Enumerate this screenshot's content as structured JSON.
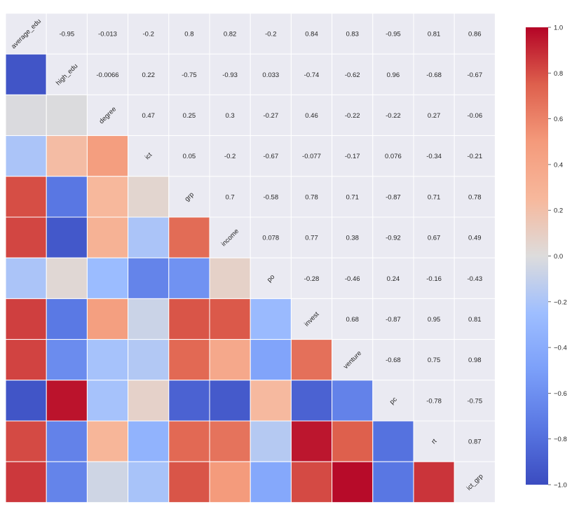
{
  "chart_data": {
    "type": "heatmap",
    "title": "",
    "xlabel": "",
    "ylabel": "",
    "variables": [
      "average_edu",
      "high_edu",
      "degree",
      "ict",
      "grp",
      "income",
      "po",
      "invest",
      "venture",
      "pc",
      "rt",
      "ict_grp"
    ],
    "upper_labels": [
      [
        "",
        "-0.95",
        "-0.013",
        "-0.2",
        "0.8",
        "0.82",
        "-0.2",
        "0.84",
        "0.83",
        "-0.95",
        "0.81",
        "0.86"
      ],
      [
        "",
        "",
        "-0.0066",
        "0.22",
        "-0.75",
        "-0.93",
        "0.033",
        "-0.74",
        "-0.62",
        "0.96",
        "-0.68",
        "-0.67"
      ],
      [
        "",
        "",
        "",
        "0.47",
        "0.25",
        "0.3",
        "-0.27",
        "0.46",
        "-0.22",
        "-0.22",
        "0.27",
        "-0.06"
      ],
      [
        "",
        "",
        "",
        "",
        "0.05",
        "-0.2",
        "-0.67",
        "-0.077",
        "-0.17",
        "0.076",
        "-0.34",
        "-0.21"
      ],
      [
        "",
        "",
        "",
        "",
        "",
        "0.7",
        "-0.58",
        "0.78",
        "0.71",
        "-0.87",
        "0.71",
        "0.78"
      ],
      [
        "",
        "",
        "",
        "",
        "",
        "",
        "0.078",
        "0.77",
        "0.38",
        "-0.92",
        "0.67",
        "0.49"
      ],
      [
        "",
        "",
        "",
        "",
        "",
        "",
        "",
        "-0.28",
        "-0.46",
        "0.24",
        "-0.16",
        "-0.43"
      ],
      [
        "",
        "",
        "",
        "",
        "",
        "",
        "",
        "",
        "0.68",
        "-0.87",
        "0.95",
        "0.81"
      ],
      [
        "",
        "",
        "",
        "",
        "",
        "",
        "",
        "",
        "",
        "-0.68",
        "0.75",
        "0.98"
      ],
      [
        "",
        "",
        "",
        "",
        "",
        "",
        "",
        "",
        "",
        "",
        "-0.78",
        "-0.75"
      ],
      [
        "",
        "",
        "",
        "",
        "",
        "",
        "",
        "",
        "",
        "",
        "",
        "0.87"
      ],
      [
        "",
        "",
        "",
        "",
        "",
        "",
        "",
        "",
        "",
        "",
        "",
        ""
      ]
    ],
    "colorbar": {
      "min": -1.0,
      "max": 1.0,
      "ticks": [
        "1.0",
        "0.8",
        "0.6",
        "0.4",
        "0.2",
        "0.0",
        "−0.2",
        "−0.4",
        "−0.6",
        "−0.8",
        "−1.0"
      ],
      "tick_values": [
        1.0,
        0.8,
        0.6,
        0.4,
        0.2,
        0.0,
        -0.2,
        -0.4,
        -0.6,
        -0.8,
        -1.0
      ]
    },
    "colormap": "coolwarm",
    "grid": true,
    "colors": {
      "background": "#eaeaf2",
      "grid": "#ffffff",
      "low": "#3b4cc0",
      "mid": "#dddddd",
      "high": "#b40426"
    }
  }
}
